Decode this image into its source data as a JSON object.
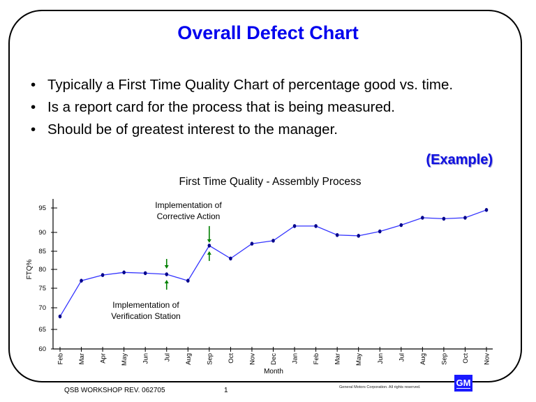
{
  "slide": {
    "title": "Overall Defect Chart",
    "bullets": [
      "Typically a First Time Quality Chart of percentage good vs. time.",
      "Is a report card for the process that is being measured.",
      "Should be of greatest interest to the manager."
    ],
    "bullet_glyph": "•",
    "example_label": "(Example)"
  },
  "footer": {
    "left": "QSB WORKSHOP REV. 062705",
    "page": "1",
    "copyright": "General Motors Corporation.  All rights reserved.",
    "logo": "GM"
  },
  "colors": {
    "title": "#0000ee",
    "line": "#3333ff",
    "marker": "#00008b",
    "arrow": "#008000",
    "logo_bg": "#1a1aff"
  },
  "chart_data": {
    "type": "line",
    "title": "First Time Quality -  Assembly Process",
    "xlabel": "Month",
    "ylabel": "FTQ%",
    "ylim": [
      60,
      95
    ],
    "yticks": [
      60,
      65,
      70,
      75,
      80,
      85,
      90,
      95
    ],
    "grid": false,
    "legend": null,
    "categories": [
      "Feb",
      "Mar",
      "Apr",
      "May",
      "Jun",
      "Jul",
      "Aug",
      "Sep",
      "Oct",
      "Nov",
      "Dec",
      "Jan",
      "Feb",
      "Mar",
      "May",
      "Jun",
      "Jul",
      "Aug",
      "Sep",
      "Oct",
      "Nov"
    ],
    "series": [
      {
        "name": "FTQ%",
        "values": [
          68,
          77,
          78.5,
          79.2,
          79,
          78.7,
          77,
          86.5,
          83,
          87,
          87.8,
          91.3,
          91.3,
          89.3,
          89.1,
          90.2,
          91.5,
          93,
          92.8,
          93,
          94.6
        ]
      }
    ],
    "annotations": [
      {
        "text": "Implementation of\nVerification Station",
        "x": "Jul",
        "index": 5
      },
      {
        "text": "Implementation of\nCorrective Action",
        "x": "Sep",
        "index": 7
      }
    ]
  }
}
